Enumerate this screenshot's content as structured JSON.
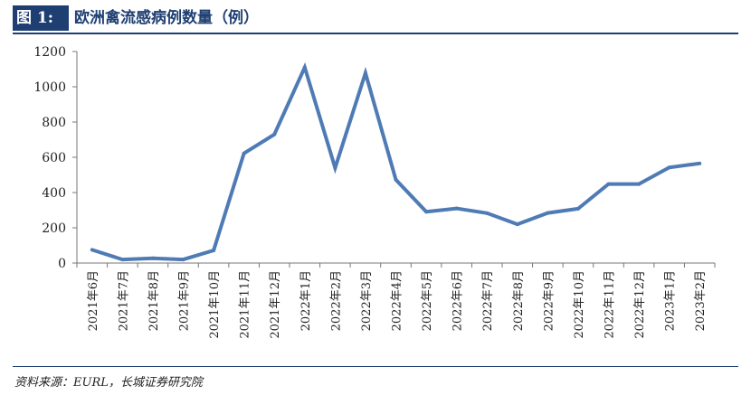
{
  "header": {
    "figure_label": "图 1:",
    "title": "欧洲禽流感病例数量（例）"
  },
  "source": "资料来源：EURL，长城证券研究院",
  "colors": {
    "line": "#4f7bb5",
    "accent": "#1f3f73"
  },
  "chart_data": {
    "type": "line",
    "title": "欧洲禽流感病例数量（例）",
    "xlabel": "",
    "ylabel": "",
    "ylim": [
      0,
      1200
    ],
    "yticks": [
      0,
      200,
      400,
      600,
      800,
      1000,
      1200
    ],
    "grid": false,
    "categories": [
      "2021年6月",
      "2021年7月",
      "2021年8月",
      "2021年9月",
      "2021年10月",
      "2021年11月",
      "2021年12月",
      "2022年1月",
      "2022年2月",
      "2022年3月",
      "2022年4月",
      "2022年5月",
      "2022年6月",
      "2022年7月",
      "2022年8月",
      "2022年9月",
      "2022年10月",
      "2022年11月",
      "2022年12月",
      "2023年1月",
      "2023年2月"
    ],
    "series": [
      {
        "values": [
          75,
          20,
          27,
          20,
          72,
          622,
          730,
          1110,
          540,
          1078,
          473,
          291,
          310,
          283,
          220,
          284,
          308,
          448,
          448,
          542,
          565
        ]
      }
    ]
  }
}
